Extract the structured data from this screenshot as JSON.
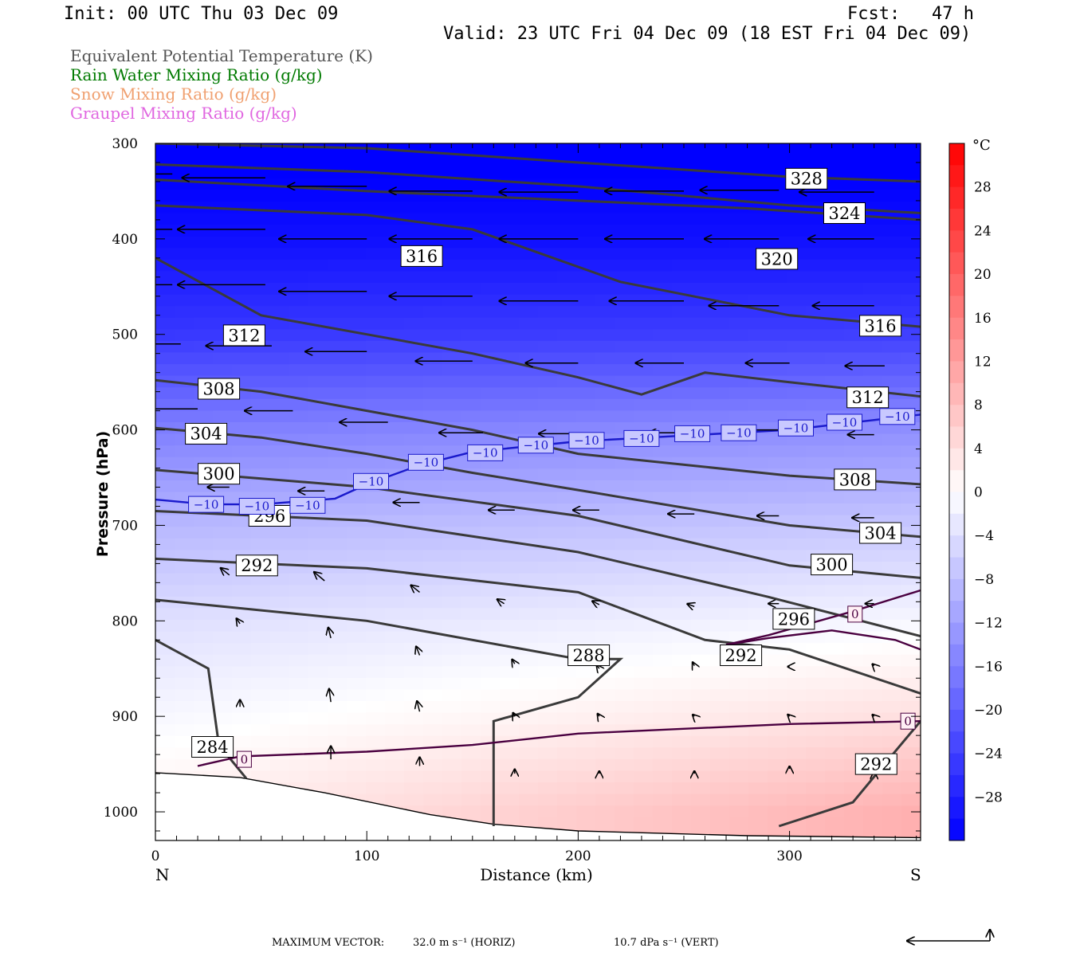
{
  "header": {
    "init": "Init: 00 UTC Thu 03 Dec 09",
    "fcst": "Fcst:   47 h",
    "valid": "Valid: 23 UTC Fri 04 Dec 09 (18 EST Fri 04 Dec 09)"
  },
  "legend": [
    {
      "label": "Equivalent Potential Temperature (K)",
      "color": "#555555"
    },
    {
      "label": "Rain Water Mixing Ratio (g/kg)",
      "color": "#007a00"
    },
    {
      "label": "Snow Mixing Ratio (g/kg)",
      "color": "#f0a070"
    },
    {
      "label": "Graupel Mixing Ratio (g/kg)",
      "color": "#e066e0"
    }
  ],
  "footer": {
    "max_vector_label": "MAXIMUM VECTOR:",
    "horiz": "32.0 m s⁻¹ (HORIZ)",
    "vert": "10.7 dPa s⁻¹ (VERT)"
  },
  "chart_data": {
    "type": "heatmap",
    "xlabel": "Distance (km)",
    "ylabel": "Pressure (hPa)",
    "xlim": [
      0,
      362
    ],
    "ylim": [
      1030,
      300
    ],
    "y_scale": "linear",
    "x_ticks": [
      0,
      100,
      200,
      300
    ],
    "y_ticks": [
      300,
      400,
      500,
      600,
      700,
      800,
      900,
      1000
    ],
    "x_end_labels": {
      "left": "N",
      "right": "S"
    },
    "colorbar": {
      "unit": "°C",
      "tick_labels": [
        "28",
        "24",
        "20",
        "16",
        "12",
        "8",
        "4",
        "0",
        "−4",
        "−8",
        "−12",
        "−16",
        "−20",
        "−24",
        "−28"
      ],
      "range": [
        -32,
        32
      ]
    },
    "temperature_field_control_points": {
      "pressure": [
        300,
        400,
        500,
        600,
        700,
        800,
        900,
        1000
      ],
      "temp_left_C": [
        -33,
        -30,
        -25,
        -16,
        -9,
        -4,
        -1,
        2
      ],
      "temp_right_C": [
        -33,
        -30,
        -24,
        -14,
        -7,
        -1,
        4,
        10
      ]
    },
    "theta_e_contours": [
      {
        "value": 328,
        "points": [
          [
            0,
            300
          ],
          [
            100,
            305
          ],
          [
            200,
            320
          ],
          [
            300,
            335
          ],
          [
            362,
            340
          ]
        ]
      },
      {
        "value": 324,
        "points": [
          [
            0,
            322
          ],
          [
            100,
            330
          ],
          [
            200,
            345
          ],
          [
            300,
            365
          ],
          [
            362,
            373
          ]
        ]
      },
      {
        "value": 320,
        "points": [
          [
            0,
            338
          ],
          [
            100,
            350
          ],
          [
            200,
            360
          ],
          [
            280,
            368
          ],
          [
            362,
            380
          ]
        ]
      },
      {
        "value": 316,
        "points": [
          [
            0,
            365
          ],
          [
            100,
            375
          ],
          [
            150,
            390
          ],
          [
            220,
            445
          ],
          [
            300,
            480
          ],
          [
            362,
            492
          ]
        ]
      },
      {
        "value": 312,
        "points": [
          [
            0,
            420
          ],
          [
            50,
            480
          ],
          [
            100,
            500
          ],
          [
            150,
            520
          ],
          [
            200,
            545
          ],
          [
            230,
            563
          ],
          [
            260,
            540
          ],
          [
            300,
            550
          ],
          [
            362,
            565
          ]
        ]
      },
      {
        "value": 308,
        "points": [
          [
            0,
            548
          ],
          [
            50,
            560
          ],
          [
            100,
            580
          ],
          [
            150,
            600
          ],
          [
            200,
            625
          ],
          [
            300,
            648
          ],
          [
            362,
            657
          ]
        ]
      },
      {
        "value": 304,
        "points": [
          [
            0,
            598
          ],
          [
            50,
            608
          ],
          [
            100,
            625
          ],
          [
            150,
            645
          ],
          [
            200,
            663
          ],
          [
            300,
            700
          ],
          [
            362,
            712
          ]
        ]
      },
      {
        "value": 300,
        "points": [
          [
            0,
            642
          ],
          [
            100,
            660
          ],
          [
            200,
            690
          ],
          [
            300,
            742
          ],
          [
            362,
            755
          ]
        ]
      },
      {
        "value": 296,
        "points": [
          [
            0,
            685
          ],
          [
            100,
            695
          ],
          [
            200,
            728
          ],
          [
            290,
            775
          ],
          [
            362,
            816
          ]
        ]
      },
      {
        "value": 292,
        "points": [
          [
            0,
            735
          ],
          [
            100,
            745
          ],
          [
            200,
            770
          ],
          [
            260,
            820
          ],
          [
            300,
            830
          ],
          [
            362,
            876
          ]
        ]
      },
      {
        "value": 288,
        "points": [
          [
            0,
            778
          ],
          [
            100,
            800
          ],
          [
            200,
            840
          ],
          [
            220,
            840
          ],
          [
            200,
            880
          ],
          [
            160,
            905
          ],
          [
            160,
            1015
          ]
        ]
      },
      {
        "value": 284,
        "points": [
          [
            0,
            820
          ],
          [
            25,
            850
          ],
          [
            30,
            930
          ],
          [
            43,
            965
          ]
        ]
      },
      {
        "value": 292,
        "points": [
          [
            295,
            1015
          ],
          [
            330,
            990
          ],
          [
            345,
            950
          ],
          [
            362,
            905
          ]
        ]
      }
    ],
    "theta_e_labels": [
      {
        "value": "328",
        "x": 308,
        "p": 337
      },
      {
        "value": "324",
        "x": 326,
        "p": 373
      },
      {
        "value": "320",
        "x": 294,
        "p": 421
      },
      {
        "value": "316",
        "x": 126,
        "p": 418
      },
      {
        "value": "316",
        "x": 343,
        "p": 491
      },
      {
        "value": "312",
        "x": 42,
        "p": 501
      },
      {
        "value": "312",
        "x": 337,
        "p": 566
      },
      {
        "value": "308",
        "x": 30,
        "p": 557
      },
      {
        "value": "308",
        "x": 331,
        "p": 652
      },
      {
        "value": "304",
        "x": 24,
        "p": 604
      },
      {
        "value": "304",
        "x": 343,
        "p": 708
      },
      {
        "value": "300",
        "x": 30,
        "p": 646
      },
      {
        "value": "300",
        "x": 320,
        "p": 741
      },
      {
        "value": "296",
        "x": 54,
        "p": 690
      },
      {
        "value": "296",
        "x": 302,
        "p": 798
      },
      {
        "value": "292",
        "x": 48,
        "p": 742
      },
      {
        "value": "292",
        "x": 277,
        "p": 836
      },
      {
        "value": "292",
        "x": 341,
        "p": 950
      },
      {
        "value": "288",
        "x": 205,
        "p": 836
      },
      {
        "value": "284",
        "x": 27,
        "p": 932
      }
    ],
    "isotherm_minus10": {
      "value": "−10",
      "points": [
        [
          0,
          673
        ],
        [
          25,
          678
        ],
        [
          50,
          678
        ],
        [
          85,
          672
        ],
        [
          100,
          657
        ],
        [
          125,
          637
        ],
        [
          150,
          623
        ],
        [
          200,
          612
        ],
        [
          250,
          606
        ],
        [
          300,
          600
        ],
        [
          362,
          584
        ]
      ],
      "labels": [
        [
          24,
          678
        ],
        [
          48,
          680
        ],
        [
          72,
          679
        ],
        [
          102,
          654
        ],
        [
          128,
          634
        ],
        [
          156,
          624
        ],
        [
          180,
          616
        ],
        [
          204,
          611
        ],
        [
          230,
          609
        ],
        [
          254,
          604
        ],
        [
          276,
          603
        ],
        [
          303,
          598
        ],
        [
          326,
          592
        ],
        [
          351,
          586
        ]
      ]
    },
    "isotherm_zero": {
      "value": "0",
      "segments": [
        [
          [
            20,
            952
          ],
          [
            40,
            942
          ],
          [
            100,
            937
          ],
          [
            150,
            930
          ],
          [
            200,
            918
          ],
          [
            300,
            908
          ],
          [
            362,
            905
          ]
        ],
        [
          [
            270,
            825
          ],
          [
            290,
            818
          ],
          [
            320,
            810
          ],
          [
            350,
            820
          ],
          [
            362,
            830
          ]
        ],
        [
          [
            270,
            825
          ],
          [
            290,
            815
          ],
          [
            330,
            790
          ],
          [
            362,
            768
          ]
        ]
      ],
      "labels": [
        [
          42,
          945
        ],
        [
          331,
          793
        ],
        [
          356,
          905
        ]
      ]
    },
    "wind_vectors": [
      {
        "x": 8,
        "p": 332,
        "u": -1.0,
        "w": 0
      },
      {
        "x": 52,
        "p": 336,
        "u": -0.95,
        "w": 0
      },
      {
        "x": 100,
        "p": 345,
        "u": -0.9,
        "w": 0
      },
      {
        "x": 150,
        "p": 350,
        "u": -0.95,
        "w": 0
      },
      {
        "x": 200,
        "p": 351,
        "u": -0.9,
        "w": 0
      },
      {
        "x": 250,
        "p": 350,
        "u": -0.9,
        "w": 0
      },
      {
        "x": 295,
        "p": 349,
        "u": -0.9,
        "w": 0
      },
      {
        "x": 340,
        "p": 351,
        "u": -0.85,
        "w": 0
      },
      {
        "x": 8,
        "p": 390,
        "u": -1.0,
        "w": 0
      },
      {
        "x": 52,
        "p": 390,
        "u": -1.0,
        "w": 0
      },
      {
        "x": 100,
        "p": 400,
        "u": -1.0,
        "w": 0
      },
      {
        "x": 150,
        "p": 400,
        "u": -0.95,
        "w": 0
      },
      {
        "x": 200,
        "p": 400,
        "u": -0.9,
        "w": 0
      },
      {
        "x": 250,
        "p": 400,
        "u": -0.9,
        "w": 0
      },
      {
        "x": 295,
        "p": 400,
        "u": -0.85,
        "w": 0
      },
      {
        "x": 340,
        "p": 400,
        "u": -0.75,
        "w": 0
      },
      {
        "x": 8,
        "p": 448,
        "u": -1.0,
        "w": 0
      },
      {
        "x": 52,
        "p": 448,
        "u": -1.0,
        "w": 0
      },
      {
        "x": 100,
        "p": 455,
        "u": -1.0,
        "w": 0
      },
      {
        "x": 150,
        "p": 460,
        "u": -0.95,
        "w": 0
      },
      {
        "x": 200,
        "p": 465,
        "u": -0.9,
        "w": 0
      },
      {
        "x": 250,
        "p": 465,
        "u": -0.85,
        "w": 0
      },
      {
        "x": 295,
        "p": 470,
        "u": -0.8,
        "w": 0
      },
      {
        "x": 340,
        "p": 470,
        "u": -0.7,
        "w": 0
      },
      {
        "x": 12,
        "p": 510,
        "u": -0.85,
        "w": 0
      },
      {
        "x": 55,
        "p": 512,
        "u": -0.75,
        "w": 0
      },
      {
        "x": 100,
        "p": 518,
        "u": -0.7,
        "w": 0
      },
      {
        "x": 150,
        "p": 528,
        "u": -0.65,
        "w": 0
      },
      {
        "x": 200,
        "p": 530,
        "u": -0.6,
        "w": 0
      },
      {
        "x": 250,
        "p": 530,
        "u": -0.55,
        "w": 0
      },
      {
        "x": 300,
        "p": 530,
        "u": -0.5,
        "w": 0
      },
      {
        "x": 345,
        "p": 533,
        "u": -0.45,
        "w": 0
      },
      {
        "x": 20,
        "p": 578,
        "u": -0.65,
        "w": 0
      },
      {
        "x": 65,
        "p": 580,
        "u": -0.55,
        "w": 0
      },
      {
        "x": 110,
        "p": 592,
        "u": -0.55,
        "w": 0
      },
      {
        "x": 155,
        "p": 603,
        "u": -0.5,
        "w": 0
      },
      {
        "x": 200,
        "p": 604,
        "u": -0.45,
        "w": 0
      },
      {
        "x": 250,
        "p": 603,
        "u": -0.4,
        "w": 0
      },
      {
        "x": 295,
        "p": 600,
        "u": -0.35,
        "w": 0
      },
      {
        "x": 340,
        "p": 605,
        "u": -0.3,
        "w": 0
      },
      {
        "x": 35,
        "p": 660,
        "u": -0.25,
        "w": 0
      },
      {
        "x": 80,
        "p": 664,
        "u": -0.3,
        "w": 0
      },
      {
        "x": 125,
        "p": 676,
        "u": -0.3,
        "w": 0
      },
      {
        "x": 170,
        "p": 684,
        "u": -0.3,
        "w": 0
      },
      {
        "x": 210,
        "p": 684,
        "u": -0.3,
        "w": 0
      },
      {
        "x": 255,
        "p": 688,
        "u": -0.3,
        "w": 0
      },
      {
        "x": 295,
        "p": 690,
        "u": -0.25,
        "w": 0
      },
      {
        "x": 340,
        "p": 692,
        "u": -0.25,
        "w": 0
      },
      {
        "x": 35,
        "p": 752,
        "u": -0.1,
        "w": 0.08
      },
      {
        "x": 80,
        "p": 758,
        "u": -0.12,
        "w": 0.1
      },
      {
        "x": 125,
        "p": 770,
        "u": -0.1,
        "w": 0.08
      },
      {
        "x": 165,
        "p": 782,
        "u": -0.08,
        "w": 0.05
      },
      {
        "x": 210,
        "p": 783,
        "u": -0.08,
        "w": 0.04
      },
      {
        "x": 255,
        "p": 785,
        "u": -0.08,
        "w": 0.03
      },
      {
        "x": 295,
        "p": 782,
        "u": -0.12,
        "w": 0
      },
      {
        "x": 340,
        "p": 782,
        "u": -0.1,
        "w": 0
      },
      {
        "x": 40,
        "p": 803,
        "u": -0.04,
        "w": 0.06
      },
      {
        "x": 83,
        "p": 818,
        "u": -0.03,
        "w": 0.12
      },
      {
        "x": 125,
        "p": 836,
        "u": -0.04,
        "w": 0.1
      },
      {
        "x": 170,
        "p": 845,
        "u": -0.03,
        "w": 0.05
      },
      {
        "x": 210,
        "p": 850,
        "u": -0.03,
        "w": 0.04
      },
      {
        "x": 255,
        "p": 847,
        "u": -0.02,
        "w": 0.04
      },
      {
        "x": 300,
        "p": 848,
        "u": -0.02,
        "w": 0
      },
      {
        "x": 340,
        "p": 847,
        "u": -0.02,
        "w": 0.02
      },
      {
        "x": 40,
        "p": 890,
        "u": 0,
        "w": 0.08
      },
      {
        "x": 83,
        "p": 885,
        "u": -0.02,
        "w": 0.15
      },
      {
        "x": 125,
        "p": 895,
        "u": -0.03,
        "w": 0.12
      },
      {
        "x": 170,
        "p": 900,
        "u": -0.02,
        "w": 0.04
      },
      {
        "x": 210,
        "p": 900,
        "u": -0.02,
        "w": 0.03
      },
      {
        "x": 255,
        "p": 900,
        "u": -0.02,
        "w": 0.02
      },
      {
        "x": 300,
        "p": 900,
        "u": -0.02,
        "w": 0.02
      },
      {
        "x": 340,
        "p": 900,
        "u": -0.02,
        "w": 0.02
      },
      {
        "x": 83,
        "p": 945,
        "u": 0,
        "w": 0.15
      },
      {
        "x": 125,
        "p": 952,
        "u": 0,
        "w": 0.1
      },
      {
        "x": 170,
        "p": 960,
        "u": 0,
        "w": 0.05
      },
      {
        "x": 210,
        "p": 960,
        "u": 0,
        "w": 0.03
      },
      {
        "x": 255,
        "p": 960,
        "u": 0,
        "w": 0.03
      },
      {
        "x": 300,
        "p": 955,
        "u": 0,
        "w": 0.03
      },
      {
        "x": 340,
        "p": 960,
        "u": 0,
        "w": 0.02
      }
    ],
    "terrain_surface": [
      [
        0,
        959
      ],
      [
        40,
        964
      ],
      [
        80,
        980
      ],
      [
        130,
        1003
      ],
      [
        160,
        1013
      ],
      [
        200,
        1020
      ],
      [
        280,
        1025
      ],
      [
        362,
        1027
      ]
    ]
  }
}
